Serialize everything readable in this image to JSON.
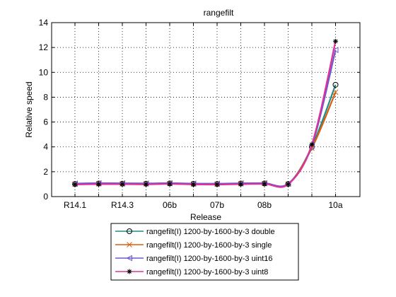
{
  "chart_data": {
    "type": "line",
    "title": "rangefilt",
    "xlabel": "Release",
    "ylabel": "Relative speed",
    "ylim": [
      0,
      14
    ],
    "yticks": [
      0,
      2,
      4,
      6,
      8,
      10,
      12,
      14
    ],
    "grid": true,
    "x_tick_labels": [
      "R14.1",
      "R14.3",
      "06b",
      "07b",
      "08b",
      "10a"
    ],
    "x_tick_index": [
      1,
      3,
      5,
      7,
      9,
      12
    ],
    "n_points": 12,
    "legend_placement": "bottom-outside",
    "series": [
      {
        "name": "rangefilt(I)  1200-by-1600-by-3 double",
        "color": "#228b8b",
        "marker": "circle",
        "values": [
          1.02,
          1.05,
          1.04,
          1.04,
          1.06,
          1.03,
          1.02,
          1.05,
          1.06,
          1.02,
          4.0,
          9.0
        ]
      },
      {
        "name": "rangefilt(I)  1200-by-1600-by-3 single",
        "color": "#d95f0e",
        "marker": "x",
        "values": [
          1.01,
          1.03,
          1.02,
          1.03,
          1.05,
          1.02,
          1.01,
          1.04,
          1.05,
          1.01,
          3.9,
          8.4
        ]
      },
      {
        "name": "rangefilt(I)  1200-by-1600-by-3 uint16",
        "color": "#6a5acd",
        "marker": "triangle-left",
        "values": [
          1.05,
          1.08,
          1.07,
          1.06,
          1.08,
          1.05,
          1.04,
          1.07,
          1.08,
          1.04,
          4.1,
          11.8
        ]
      },
      {
        "name": "rangefilt(I)  1200-by-1600-by-3 uint8",
        "color": "#e0309a",
        "marker": "star",
        "values": [
          0.97,
          1.0,
          1.0,
          0.99,
          1.02,
          0.98,
          0.97,
          1.0,
          1.02,
          0.99,
          4.2,
          12.5
        ]
      }
    ]
  }
}
